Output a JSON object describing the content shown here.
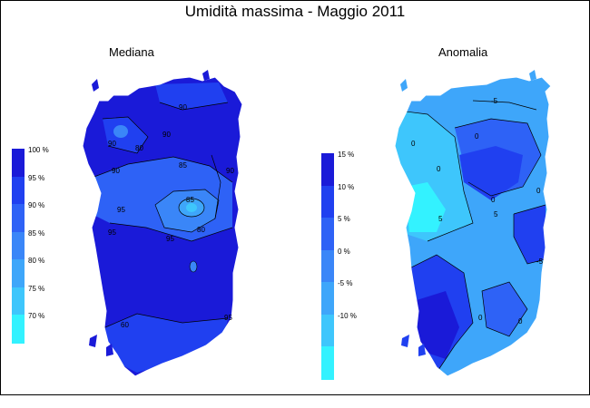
{
  "title": "Umidità massima - Maggio 2011",
  "panels": [
    {
      "id": "median",
      "subtitle": "Mediana",
      "legend": {
        "labels": [
          "100 %",
          "95 %",
          "90 %",
          "85 %",
          "80 %",
          "75 %",
          "70 %"
        ],
        "colors": [
          "#1a1ad8",
          "#2040f0",
          "#2e62f6",
          "#3a86f8",
          "#3ea6fa",
          "#3ec6fc",
          "#33f2ff"
        ]
      },
      "contour_labels": [
        "60",
        "90",
        "90",
        "90",
        "90",
        "90",
        "95",
        "95",
        "95",
        "85",
        "80",
        "85",
        "80",
        "95"
      ]
    },
    {
      "id": "anomaly",
      "subtitle": "Anomalia",
      "legend": {
        "labels": [
          "15 %",
          "10 %",
          "5 %",
          "0 %",
          "-5 %",
          "-10 %"
        ],
        "colors": [
          "#1a1ad8",
          "#2040f0",
          "#2e62f6",
          "#3a86f8",
          "#3ea6fa",
          "#3ec6fc",
          "#33f2ff"
        ]
      },
      "contour_labels": [
        "-5",
        "0",
        "0",
        "0",
        "0",
        "0",
        "5",
        "5",
        "-5",
        "0",
        "0"
      ]
    }
  ],
  "colors": {
    "background": "#ffffff",
    "contour": "#000000",
    "island_edge": "#ffffff"
  }
}
